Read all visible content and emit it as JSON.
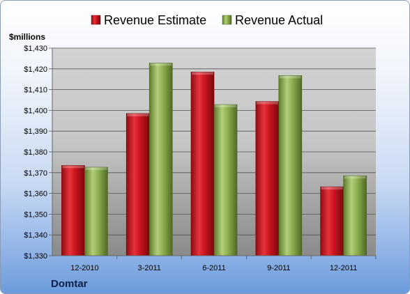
{
  "chart_data": {
    "type": "bar",
    "ylabel": "$millions",
    "ylim": [
      1330,
      1430
    ],
    "yticks": [
      1330,
      1340,
      1350,
      1360,
      1370,
      1380,
      1390,
      1400,
      1410,
      1420,
      1430
    ],
    "ytick_prefix": "$",
    "categories": [
      "12-2010",
      "3-2011",
      "6-2011",
      "9-2011",
      "12-2011"
    ],
    "series": [
      {
        "name": "Revenue Estimate",
        "values": [
          1373.5,
          1398.5,
          1418.5,
          1404.3,
          1363.2
        ]
      },
      {
        "name": "Revenue Actual",
        "values": [
          1372.6,
          1422.8,
          1402.8,
          1416.8,
          1368.5
        ]
      }
    ],
    "legend_position": "top",
    "grid": true
  },
  "company": "Domtar",
  "colors": {
    "estimate": "#c8141e",
    "actual": "#8cae4e"
  }
}
